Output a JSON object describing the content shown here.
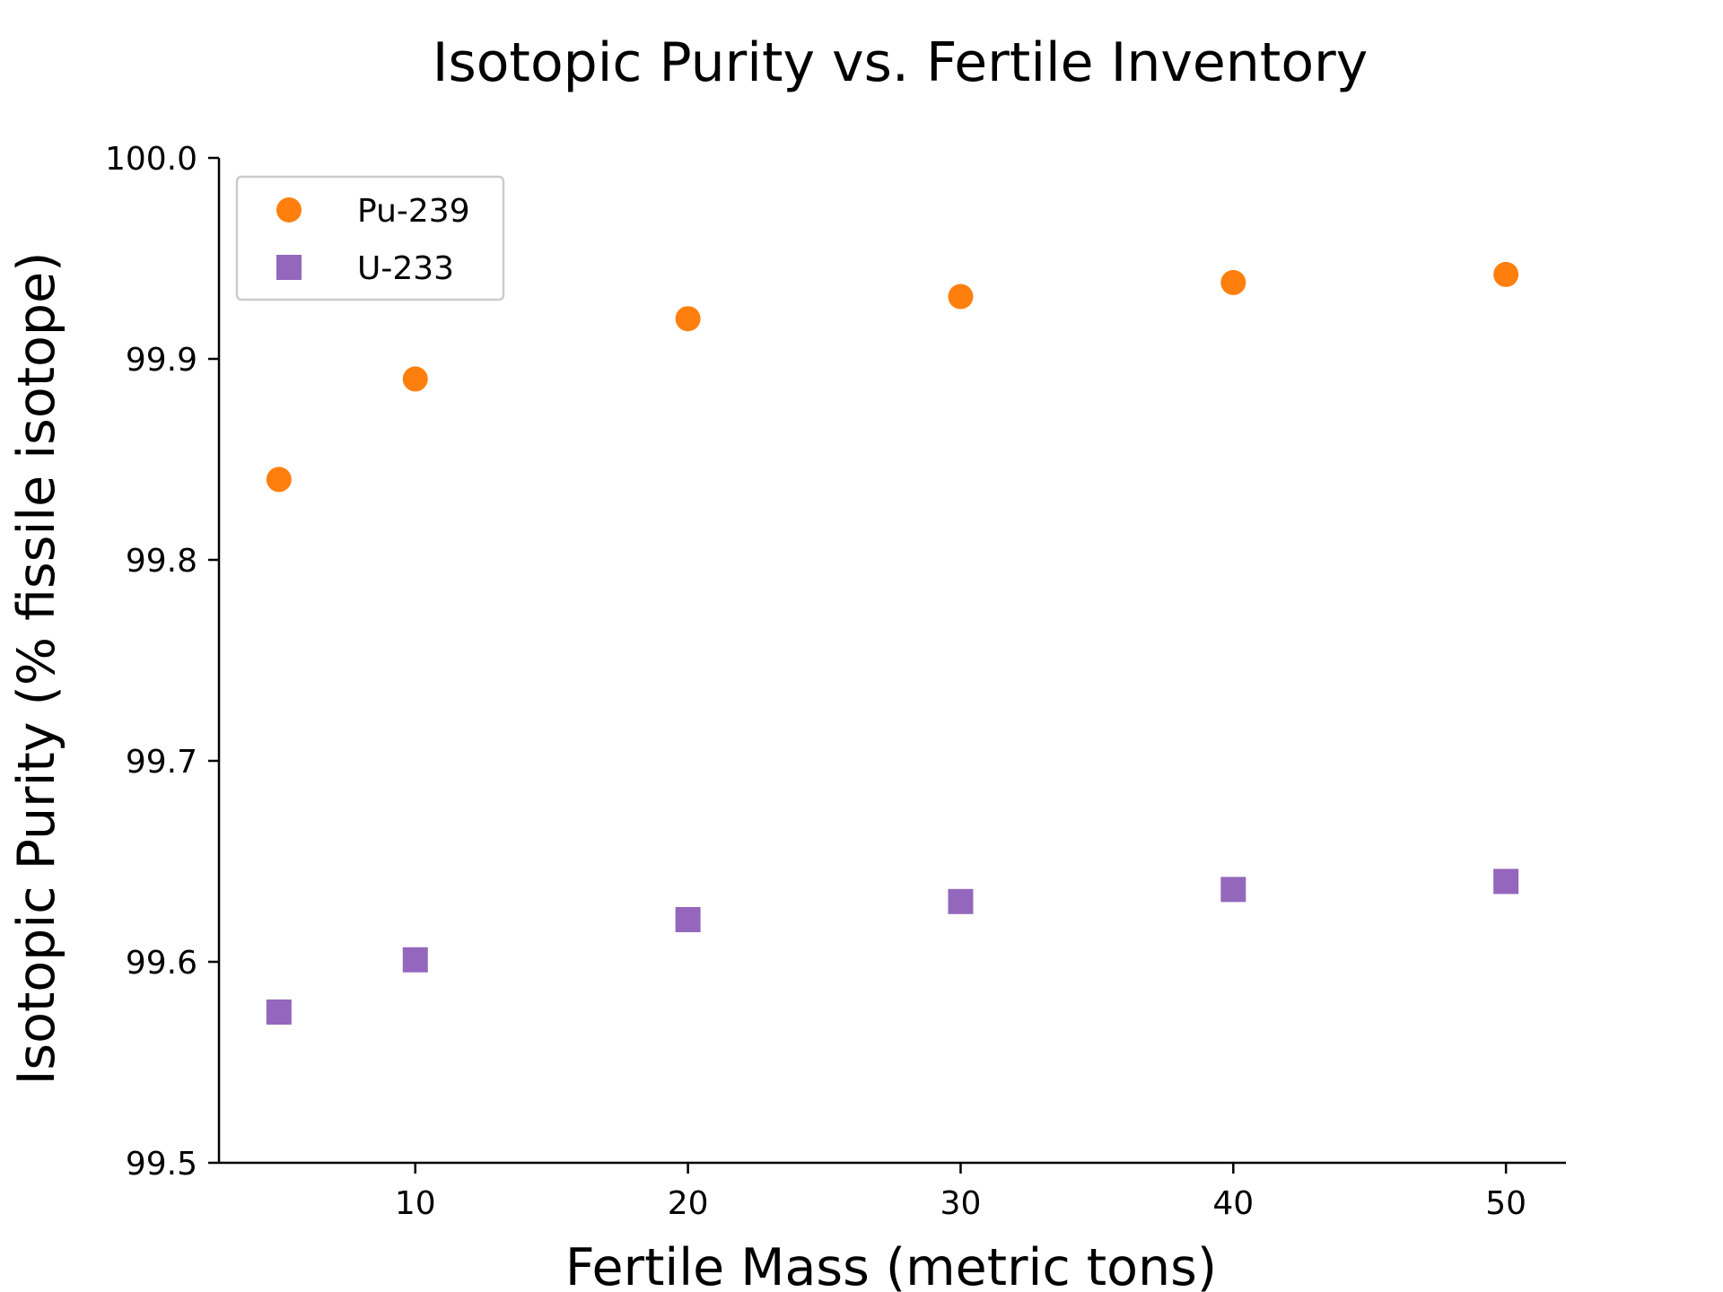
{
  "chart_data": {
    "type": "scatter",
    "title": "Isotopic Purity vs. Fertile Inventory",
    "xlabel": "Fertile Mass (metric tons)",
    "ylabel": "Isotopic Purity (% fissile isotope)",
    "xlim": [
      2.8,
      52.2
    ],
    "ylim": [
      99.5,
      100.0
    ],
    "xticks": [
      10,
      20,
      30,
      40,
      50
    ],
    "yticks": [
      "99.5",
      "99.6",
      "99.7",
      "99.8",
      "99.9",
      "100.0"
    ],
    "grid": false,
    "legend": "top-left",
    "series": [
      {
        "name": "Pu-239",
        "marker": "circle",
        "color": "#ff7f0e",
        "x": [
          5,
          10,
          20,
          30,
          40,
          50
        ],
        "y": [
          99.84,
          99.89,
          99.92,
          99.931,
          99.938,
          99.942
        ]
      },
      {
        "name": "U-233",
        "marker": "square",
        "color": "#9467bd",
        "x": [
          5,
          10,
          20,
          30,
          40,
          50
        ],
        "y": [
          99.575,
          99.601,
          99.621,
          99.63,
          99.636,
          99.64
        ]
      }
    ]
  }
}
